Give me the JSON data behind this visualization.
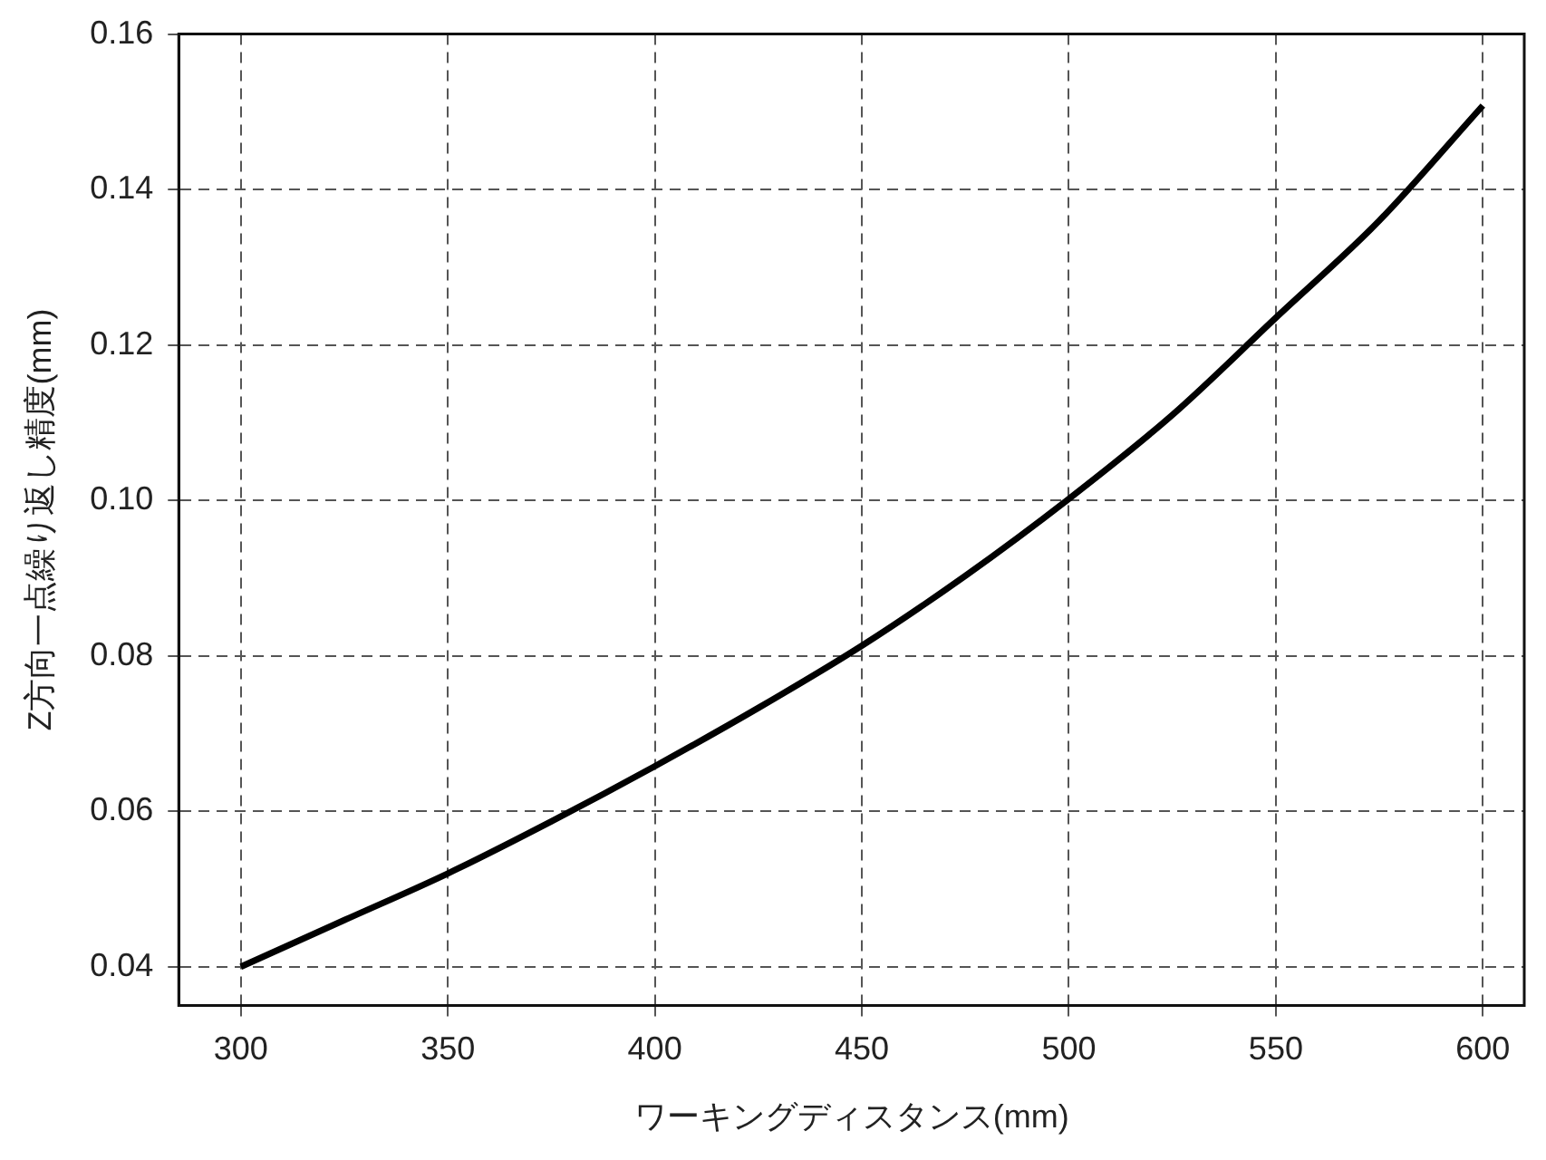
{
  "chart_data": {
    "type": "line",
    "xlabel": "ワーキングディスタンス(mm)",
    "ylabel": "Z方向一点繰り返し精度(mm)",
    "x": [
      300,
      325,
      350,
      375,
      400,
      425,
      450,
      475,
      500,
      525,
      550,
      575,
      600
    ],
    "series": [
      {
        "color": "#000000",
        "values": [
          0.04,
          0.046,
          0.052,
          0.0587,
          0.0658,
          0.0733,
          0.0813,
          0.0903,
          0.1002,
          0.111,
          0.1235,
          0.136,
          0.1508
        ]
      }
    ],
    "xlim": [
      285,
      610
    ],
    "xticks": [
      300,
      350,
      400,
      450,
      500,
      550,
      600
    ],
    "ylim": [
      0.035,
      0.16
    ],
    "yticks": [
      {
        "value": 0.04,
        "label": "0.04"
      },
      {
        "value": 0.06,
        "label": "0.06"
      },
      {
        "value": 0.08,
        "label": "0.08"
      },
      {
        "value": 0.1,
        "label": "0.10"
      },
      {
        "value": 0.12,
        "label": "0.12"
      },
      {
        "value": 0.14,
        "label": "0.14"
      },
      {
        "value": 0.16,
        "label": "0.16"
      }
    ],
    "grid": true,
    "legend": false,
    "marker": "none",
    "line_style": "solid"
  }
}
